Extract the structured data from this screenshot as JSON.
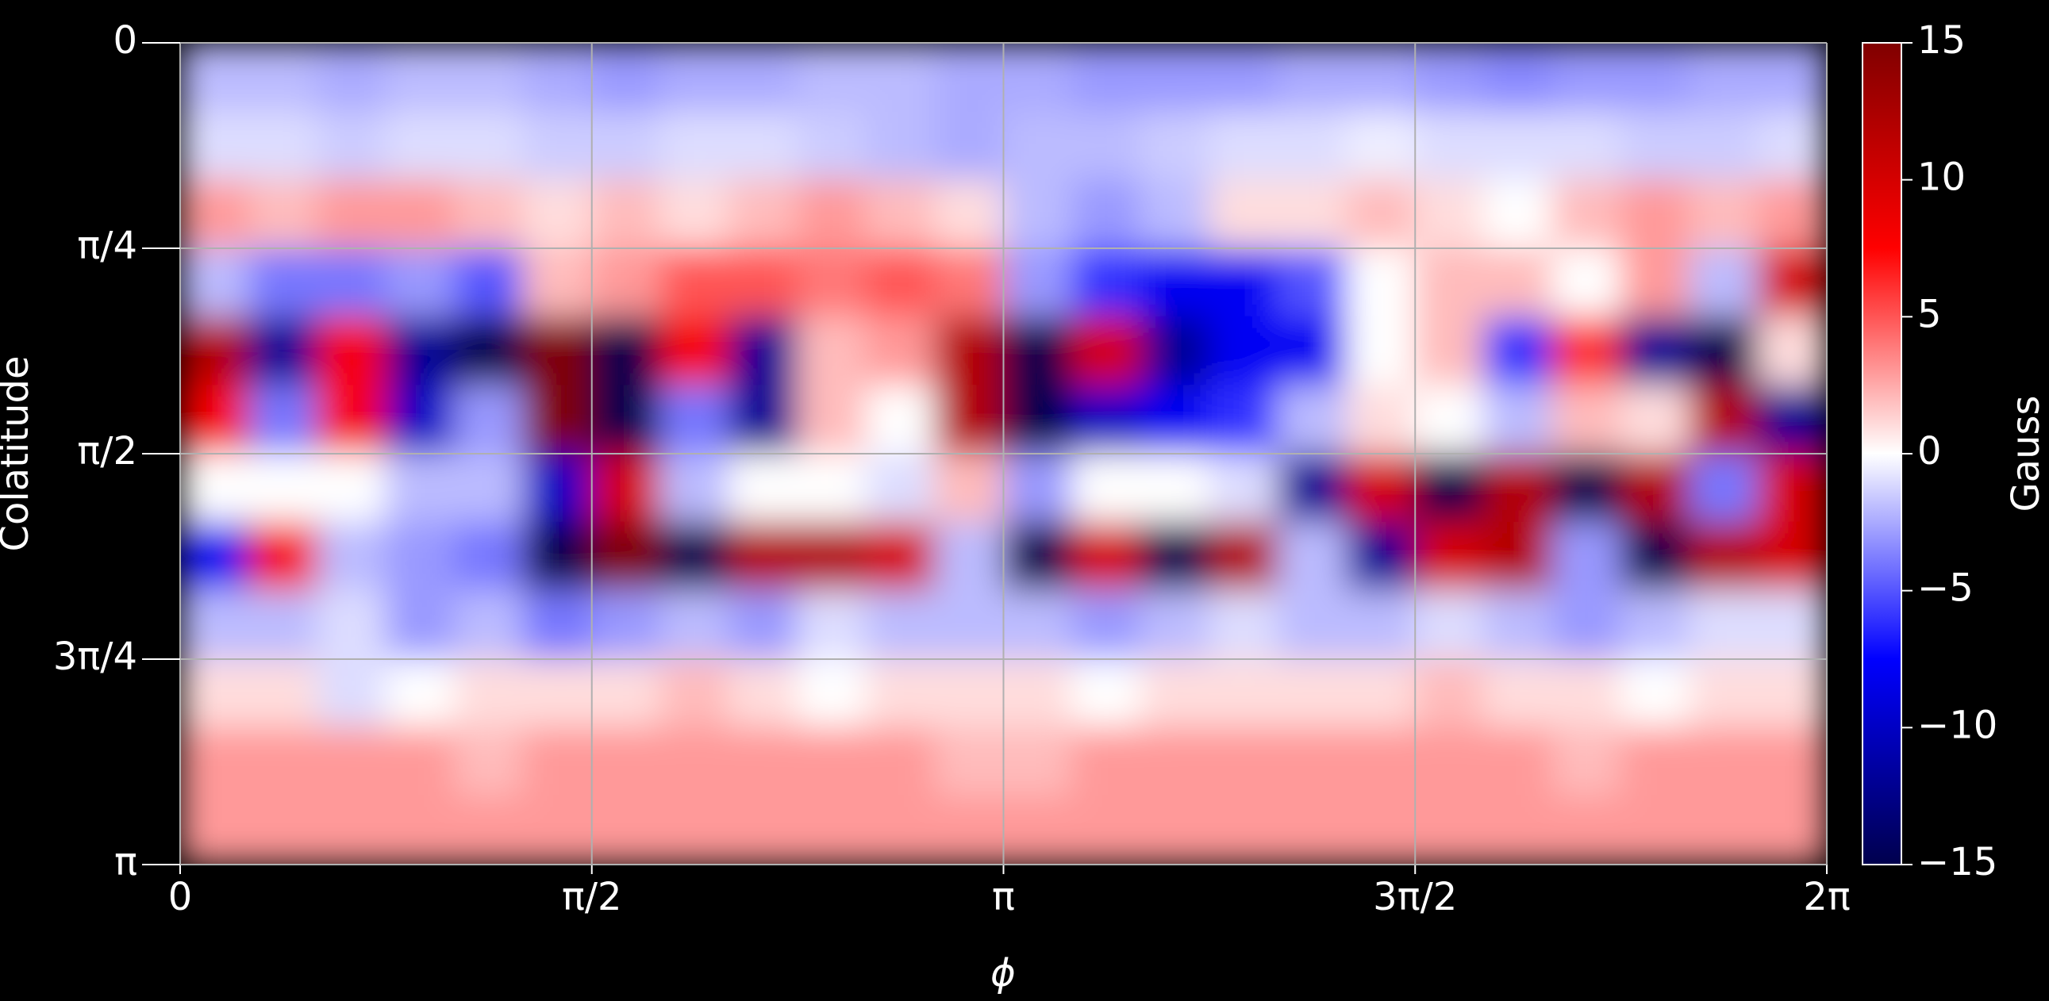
{
  "chart_data": {
    "type": "heatmap",
    "xlabel": "ϕ",
    "ylabel": "Colatitude",
    "xlim": [
      0,
      6.2832
    ],
    "ylim": [
      0,
      3.1416
    ],
    "y_inverted": true,
    "grid": true,
    "xticks": [
      0,
      {
        "value": 1.5708,
        "label": "π/2"
      },
      {
        "value": 3.1416,
        "label": "π"
      },
      {
        "value": 4.7124,
        "label": "3π/2"
      },
      {
        "value": 6.2832,
        "label": "2π"
      }
    ],
    "yticks": [
      0,
      {
        "value": 0.7854,
        "label": "π/4"
      },
      {
        "value": 1.5708,
        "label": "π/2"
      },
      {
        "value": 2.3562,
        "label": "3π/4"
      },
      {
        "value": 3.1416,
        "label": "π"
      }
    ],
    "colorbar_label": "Gauss",
    "clim": [
      -15,
      15
    ],
    "colormap": [
      "#00004d",
      "#0000ff",
      "#ffffff",
      "#ff0000",
      "#800000"
    ],
    "cticks": [
      {
        "value": 15,
        "label": "15"
      },
      10,
      5,
      0,
      {
        "value": -5,
        "label": "−5"
      },
      {
        "value": -10,
        "label": "−10"
      },
      {
        "value": -15,
        "label": "−15"
      }
    ],
    "z": [
      [
        -2,
        -2,
        -2.5,
        -2,
        -2,
        -2.5,
        -3,
        -2.5,
        -2.5,
        -2,
        -2,
        -2.5,
        -2.5,
        -3,
        -3,
        -3,
        -2.5,
        -2.5,
        -3,
        -3.5,
        -3,
        -3,
        -2.5,
        -2.5
      ],
      [
        -1,
        -1,
        -1.5,
        -1,
        -1,
        -1.5,
        -1.5,
        -1,
        -1,
        -1.5,
        -2,
        -2.5,
        -2,
        -2,
        -1.5,
        -1,
        -1,
        -0.5,
        -1,
        -1,
        -1,
        -1.5,
        -1.5,
        -1
      ],
      [
        3,
        2,
        3,
        3,
        2,
        1,
        2,
        1,
        2,
        3,
        2,
        1,
        -2,
        -3,
        -2,
        1,
        1,
        2,
        1,
        0,
        2,
        3,
        2,
        3
      ],
      [
        -2,
        -4,
        -4,
        -3,
        -5,
        2,
        3,
        5,
        5,
        4,
        5,
        4,
        -3,
        -6,
        -8,
        -8,
        -5,
        0,
        2,
        2,
        0,
        3,
        -2,
        10
      ],
      [
        12,
        -12,
        8,
        -12,
        -15,
        15,
        -15,
        8,
        -12,
        2,
        3,
        12,
        -15,
        10,
        -12,
        -8,
        -8,
        0,
        2,
        -6,
        6,
        -12,
        -15,
        1
      ],
      [
        8,
        -4,
        8,
        -10,
        -3,
        15,
        -15,
        -4,
        -12,
        2,
        0,
        12,
        -15,
        -10,
        -8,
        -6,
        -2,
        1,
        0,
        -2,
        2,
        1,
        12,
        -12
      ],
      [
        0,
        0,
        0,
        -2,
        -2,
        -10,
        10,
        -2,
        0,
        0,
        -1,
        2,
        -3,
        0,
        0,
        -1,
        -12,
        10,
        -15,
        12,
        -15,
        12,
        -4,
        10
      ],
      [
        -8,
        8,
        -2,
        -3,
        -4,
        -15,
        15,
        -15,
        12,
        12,
        10,
        -2,
        -15,
        10,
        -15,
        12,
        -2,
        -12,
        10,
        12,
        -3,
        -15,
        12,
        10
      ],
      [
        -2,
        -2,
        -1,
        -3,
        -2,
        -4,
        -3,
        -2,
        -3,
        -1,
        -2,
        -2,
        -2,
        -3,
        -2,
        -1,
        -2,
        -2,
        -1,
        -2,
        -3,
        -2,
        -1,
        -1
      ],
      [
        1,
        1,
        -1,
        0,
        1,
        1,
        1,
        2,
        1,
        0,
        1,
        1,
        1,
        0,
        1,
        1,
        1,
        1,
        2,
        1,
        1,
        0,
        1,
        1
      ],
      [
        3,
        3,
        3,
        3,
        2,
        3,
        3,
        3,
        3,
        3,
        3,
        2,
        2,
        3,
        3,
        3,
        3,
        3,
        3,
        3,
        2,
        3,
        3,
        3
      ],
      [
        3,
        3,
        3,
        3,
        3,
        3,
        3,
        3,
        3,
        3,
        3,
        3,
        3,
        3,
        3,
        3,
        3,
        3,
        3,
        3,
        3,
        3,
        3,
        3
      ]
    ]
  }
}
